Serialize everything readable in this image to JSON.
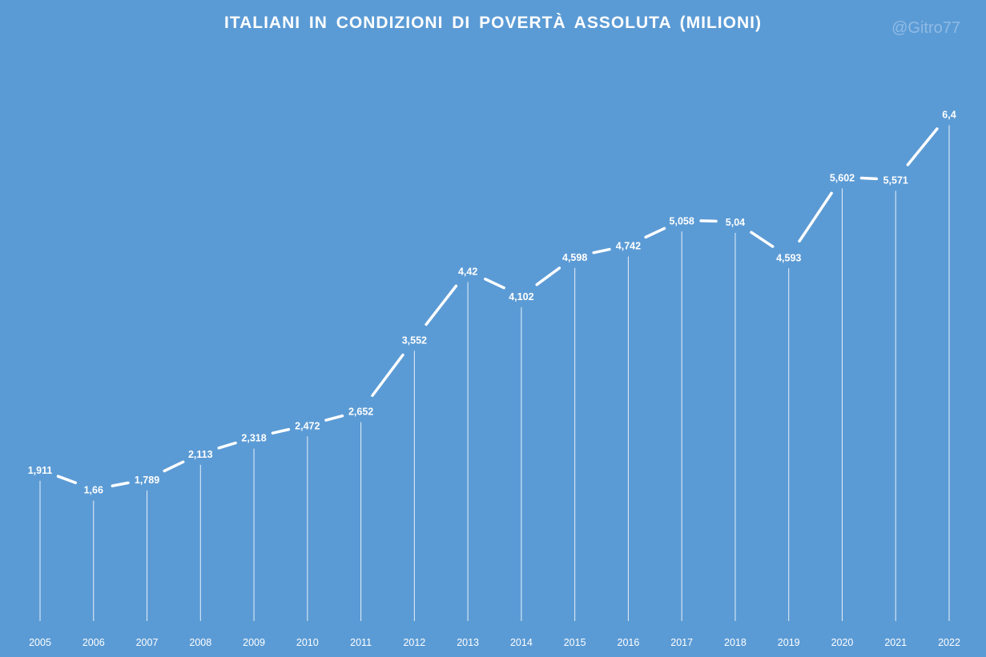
{
  "chart_data": {
    "type": "line",
    "title": "ITALIANI  IN CONDIZIONI DI POVERTÀ ASSOLUTA (MILIONI)",
    "watermark": "@Gitro77",
    "categories": [
      "2005",
      "2006",
      "2007",
      "2008",
      "2009",
      "2010",
      "2011",
      "2012",
      "2013",
      "2014",
      "2015",
      "2016",
      "2017",
      "2018",
      "2019",
      "2020",
      "2021",
      "2022"
    ],
    "series": [
      {
        "values": [
          1.911,
          1.66,
          1.789,
          2.113,
          2.318,
          2.472,
          2.652,
          3.552,
          4.42,
          4.102,
          4.598,
          4.742,
          5.058,
          5.04,
          4.593,
          5.602,
          5.571,
          6.4
        ],
        "labels": [
          "1,911",
          "1,66",
          "1,789",
          "2,113",
          "2,318",
          "2,472",
          "2,652",
          "3,552",
          "4,42",
          "4,102",
          "4,598",
          "4,742",
          "5,058",
          "5,04",
          "4,593",
          "5,602",
          "5,571",
          "6,4"
        ]
      }
    ],
    "ylim": [
      0,
      7.6
    ],
    "drop_lines": true,
    "grid": false,
    "colors": {
      "background": "#5b9bd5",
      "line": "#ffffff",
      "text": "#ffffff",
      "watermark": "#8fbbe6"
    }
  }
}
